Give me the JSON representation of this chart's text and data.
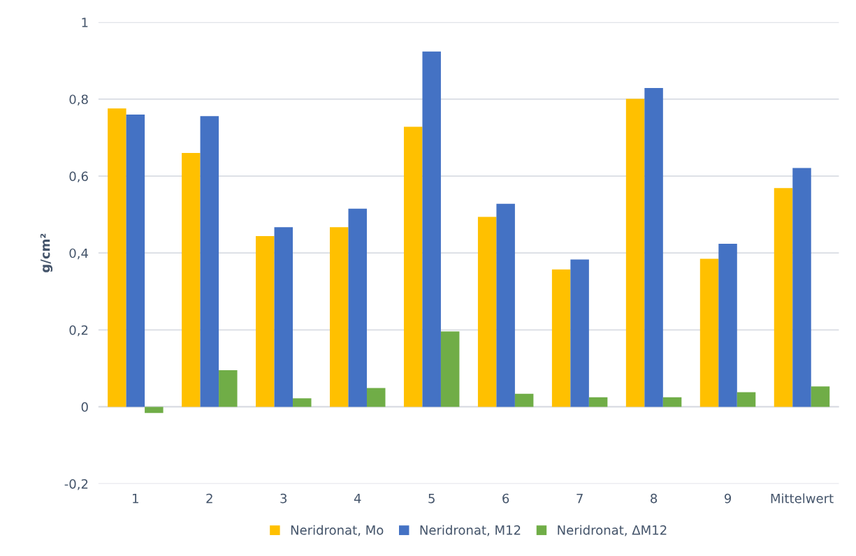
{
  "chart_data": {
    "type": "bar",
    "ylabel": "g/cm²",
    "categories": [
      "1",
      "2",
      "3",
      "4",
      "5",
      "6",
      "7",
      "8",
      "9",
      "Mittelwert"
    ],
    "series": [
      {
        "name": "Neridronat, Mo",
        "color": "#ffc000",
        "values": [
          0.776,
          0.66,
          0.444,
          0.467,
          0.728,
          0.494,
          0.357,
          0.801,
          0.385,
          0.569
        ]
      },
      {
        "name": "Neridronat, M12",
        "color": "#4472c4",
        "values": [
          0.76,
          0.756,
          0.467,
          0.515,
          0.924,
          0.528,
          0.383,
          0.829,
          0.424,
          0.621
        ]
      },
      {
        "name": "Neridronat, ΔM12",
        "color": "#70ad47",
        "values": [
          -0.016,
          0.095,
          0.022,
          0.049,
          0.196,
          0.034,
          0.025,
          0.025,
          0.038,
          0.053
        ]
      }
    ],
    "ylim": [
      -0.2,
      1
    ],
    "yticks": [
      {
        "value": -0.2,
        "label": "-0,2"
      },
      0,
      {
        "value": 0.2,
        "label": "0,2"
      },
      {
        "value": 0.4,
        "label": "0,4"
      },
      {
        "value": 0.6,
        "label": "0,6"
      },
      {
        "value": 0.8,
        "label": "0,8"
      },
      1
    ],
    "grid": "y",
    "legend": "bottom"
  }
}
